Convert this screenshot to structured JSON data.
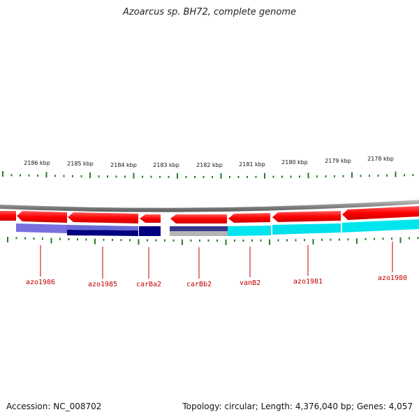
{
  "title": "Azoarcus sp. BH72, complete genome",
  "footer": {
    "accession": "Accession: NC_008702",
    "summary": "Topology: circular; Length: 4,376,040 bp; Genes: 4,057"
  },
  "colors": {
    "gene_forward": "#ff0000",
    "backbone": "#808080",
    "tick": "#2a7a2a",
    "label": "#c00000",
    "cyan": "#00e5ee",
    "navy": "#000080",
    "blue_medium": "#7070e0",
    "gray_light": "#b4b4b4"
  },
  "ruler": [
    {
      "label": "2186 kbp"
    },
    {
      "label": "2185 kbp"
    },
    {
      "label": "2184 kbp"
    },
    {
      "label": "2183 kbp"
    },
    {
      "label": "2182 kbp"
    },
    {
      "label": "2181 kbp"
    },
    {
      "label": "2180 kbp"
    },
    {
      "label": "2179 kbp"
    },
    {
      "label": "2178 kbp"
    }
  ],
  "genes": [
    {
      "label": "azo1986"
    },
    {
      "label": "azo1985"
    },
    {
      "label": "carBa2"
    },
    {
      "label": "carBb2"
    },
    {
      "label": "vanB2"
    },
    {
      "label": "azo1981"
    },
    {
      "label": "azo1980"
    }
  ]
}
